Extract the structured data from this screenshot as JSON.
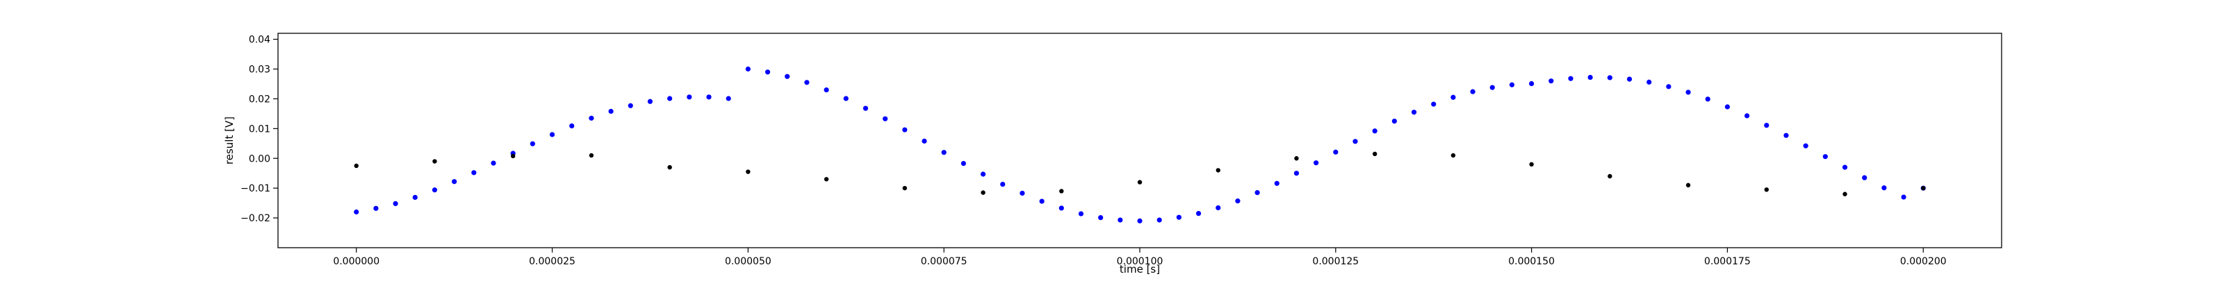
{
  "chart_data": {
    "type": "scatter",
    "title": "",
    "xlabel": "time [s]",
    "ylabel": "result [V]",
    "xlim": [
      -1e-05,
      0.00021
    ],
    "ylim": [
      -0.03,
      0.042
    ],
    "x_ticks": [
      0.0,
      2.5e-05,
      5e-05,
      7.5e-05,
      0.0001,
      0.000125,
      0.00015,
      0.000175,
      0.0002
    ],
    "x_tick_labels": [
      "0.000000",
      "0.000025",
      "0.000050",
      "0.000075",
      "0.000100",
      "0.000125",
      "0.000150",
      "0.000175",
      "0.000200"
    ],
    "y_ticks": [
      -0.02,
      -0.01,
      0.0,
      0.01,
      0.02,
      0.03,
      0.04
    ],
    "y_tick_labels": [
      "−0.02",
      "−0.01",
      "0.00",
      "0.01",
      "0.02",
      "0.03",
      "0.04"
    ],
    "grid": false,
    "legend": "none",
    "series": [
      {
        "color": "#0000ff",
        "marker": "dots",
        "x": [
          0.0,
          2.5e-06,
          5e-06,
          7.5e-06,
          1e-05,
          1.25e-05,
          1.5e-05,
          1.75e-05,
          2e-05,
          2.25e-05,
          2.5e-05,
          2.75e-05,
          3e-05,
          3.25e-05,
          3.5e-05,
          3.75e-05,
          4e-05,
          4.25e-05,
          4.5e-05,
          4.75e-05,
          5e-05,
          5.25e-05,
          5.5e-05,
          5.75e-05,
          6e-05,
          6.25e-05,
          6.5e-05,
          6.75e-05,
          7e-05,
          7.25e-05,
          7.5e-05,
          7.75e-05,
          8e-05,
          8.25e-05,
          8.5e-05,
          8.75e-05,
          9e-05,
          9.25e-05,
          9.5e-05,
          9.75e-05,
          0.0001,
          0.0001025,
          0.000105,
          0.0001075,
          0.00011,
          0.0001125,
          0.000115,
          0.0001175,
          0.00012,
          0.0001225,
          0.000125,
          0.0001275,
          0.00013,
          0.0001325,
          0.000135,
          0.0001375,
          0.00014,
          0.0001425,
          0.000145,
          0.0001475,
          0.00015,
          0.0001525,
          0.000155,
          0.0001575,
          0.00016,
          0.0001625,
          0.000165,
          0.0001675,
          0.00017,
          0.0001725,
          0.000175,
          0.0001775,
          0.00018,
          0.0001825,
          0.000185,
          0.0001875,
          0.00019,
          0.0001925,
          0.000195,
          0.0001975,
          0.0002
        ],
        "y": [
          -0.018,
          -0.0168,
          -0.0152,
          -0.0131,
          -0.0106,
          -0.0078,
          -0.0048,
          -0.0016,
          0.0017,
          0.0049,
          0.008,
          0.0109,
          0.0135,
          0.0158,
          0.0177,
          0.0191,
          0.0201,
          0.0206,
          0.0206,
          0.0201,
          0.03,
          0.029,
          0.0275,
          0.0255,
          0.023,
          0.0201,
          0.0168,
          0.0133,
          0.0096,
          0.0058,
          0.002,
          -0.0017,
          -0.0053,
          -0.0087,
          -0.0117,
          -0.0144,
          -0.0167,
          -0.0186,
          -0.0199,
          -0.0207,
          -0.021,
          -0.0207,
          -0.0198,
          -0.0185,
          -0.0166,
          -0.0143,
          -0.0115,
          -0.0084,
          -0.005,
          -0.0015,
          0.0021,
          0.0057,
          0.0092,
          0.0125,
          0.0155,
          0.0182,
          0.0205,
          0.0224,
          0.0238,
          0.0247,
          0.0251,
          0.026,
          0.0268,
          0.0272,
          0.0271,
          0.0266,
          0.0256,
          0.0241,
          0.0222,
          0.0199,
          0.0173,
          0.0143,
          0.0111,
          0.0077,
          0.0042,
          0.0006,
          -0.003,
          -0.0065,
          -0.0099,
          -0.013,
          -0.01
        ]
      },
      {
        "color": "#000000",
        "marker": "dense dots",
        "x": [
          0.0,
          1e-05,
          2e-05,
          3e-05,
          4e-05,
          5e-05,
          6e-05,
          7e-05,
          8e-05,
          9e-05,
          0.0001,
          0.00011,
          0.00012,
          0.00013,
          0.00014,
          0.00015,
          0.00016,
          0.00017,
          0.00018,
          0.00019,
          0.0002
        ],
        "y": [
          -0.0025,
          -0.001,
          0.0008,
          0.001,
          -0.003,
          -0.0045,
          -0.007,
          -0.01,
          -0.0115,
          -0.011,
          -0.008,
          -0.004,
          0.0,
          0.0015,
          0.001,
          -0.002,
          -0.006,
          -0.009,
          -0.0105,
          -0.012,
          -0.01
        ]
      }
    ]
  }
}
